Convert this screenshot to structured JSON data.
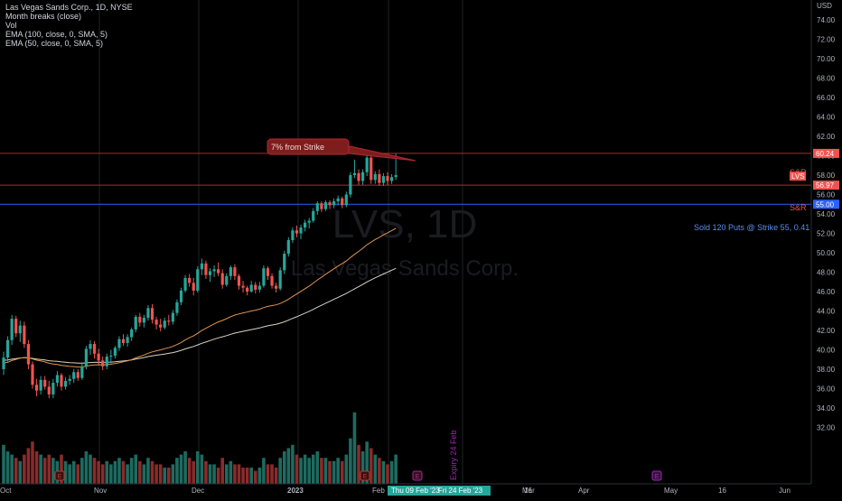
{
  "legend": {
    "symbol": "Las Vegas Sands Corp., 1D, NYSE",
    "study1": "Month breaks (close)",
    "study2": "Vol",
    "study3": "EMA (100, close, 0, SMA, 5)",
    "study4": "EMA (50, close, 0, SMA, 5)"
  },
  "watermark": {
    "ticker": "LVS, 1D",
    "name": "Las Vegas Sands Corp."
  },
  "colors": {
    "background": "#000000",
    "up": "#26a69a",
    "down": "#ef5350",
    "sr_line": "#b22833",
    "blue_line": "#2962ff",
    "ema100": "#d9d3c7",
    "ema50": "#e0954f",
    "grid": "#1f2229",
    "text": "#b2b5be",
    "vol_up": "#1d6b60",
    "vol_down": "#8a2b2b",
    "expiry": "#9c27b0"
  },
  "chart_data": {
    "type": "candlestick",
    "y_axis": {
      "unit": "USD",
      "range": [
        31.0,
        75.0
      ],
      "ticks": [
        "74.00",
        "72.00",
        "70.00",
        "68.00",
        "66.00",
        "64.00",
        "62.00",
        "60.00",
        "58.00",
        "56.00",
        "54.00",
        "52.00",
        "50.00",
        "48.00",
        "46.00",
        "44.00",
        "42.00",
        "40.00",
        "38.00",
        "36.00",
        "34.00",
        "32.00"
      ]
    },
    "x_axis": {
      "labels": [
        "Oct",
        "Nov",
        "Dec",
        "2023",
        "Feb",
        "F",
        "Mar",
        "16",
        "Apr",
        "May",
        "16",
        "Jun"
      ]
    },
    "price_labels": {
      "sr_upper": "60.24",
      "last": "LVS",
      "sr_lower": "56.97",
      "strike": "55.00"
    },
    "date_range_label": "Thu 09 Feb '23",
    "date_range_label2": "Fri 24 Feb '23",
    "horizontal_lines": [
      {
        "name": "S&R",
        "price": 60.24
      },
      {
        "name": "S&R",
        "price": 56.97
      },
      {
        "name": "Sold 120 Puts @ Strike 55, 0.41",
        "price": 55.0
      }
    ],
    "annotations": {
      "callout": "7% from Strike",
      "sr_upper_text": "S&R",
      "sr_lower_text": "S&R",
      "strike_text": "Sold 120 Puts @ Strike 55, 0.41",
      "expiry_text": "Expiry 24 Feb"
    },
    "events": [
      "E",
      "E",
      "E",
      "E"
    ],
    "candles": [
      [
        38.0,
        39.8,
        37.4,
        39.2,
        12
      ],
      [
        39.2,
        41.4,
        38.8,
        41.0,
        10
      ],
      [
        41.0,
        43.6,
        40.5,
        43.2,
        9
      ],
      [
        43.2,
        43.5,
        41.3,
        41.7,
        8
      ],
      [
        41.7,
        43.0,
        40.8,
        42.5,
        7
      ],
      [
        42.5,
        42.9,
        40.2,
        40.6,
        9
      ],
      [
        40.6,
        41.0,
        38.0,
        38.5,
        11
      ],
      [
        38.5,
        38.8,
        36.0,
        36.4,
        13
      ],
      [
        36.4,
        37.0,
        35.2,
        35.8,
        10
      ],
      [
        35.8,
        37.3,
        35.4,
        36.9,
        9
      ],
      [
        36.9,
        37.3,
        35.9,
        36.2,
        8
      ],
      [
        36.2,
        36.8,
        35.0,
        35.4,
        9
      ],
      [
        35.4,
        37.0,
        35.0,
        36.6,
        8
      ],
      [
        36.6,
        37.8,
        36.2,
        37.4,
        7
      ],
      [
        37.4,
        37.6,
        35.8,
        36.2,
        9
      ],
      [
        36.2,
        37.2,
        35.9,
        36.8,
        7
      ],
      [
        36.8,
        37.4,
        36.4,
        37.0,
        6
      ],
      [
        37.0,
        38.0,
        36.6,
        37.7,
        7
      ],
      [
        37.7,
        38.0,
        36.8,
        37.1,
        6
      ],
      [
        37.1,
        38.6,
        36.9,
        38.3,
        8
      ],
      [
        38.3,
        40.4,
        38.0,
        40.1,
        10
      ],
      [
        40.1,
        41.0,
        39.5,
        40.6,
        9
      ],
      [
        40.6,
        40.9,
        39.1,
        39.6,
        8
      ],
      [
        39.6,
        40.1,
        38.5,
        38.9,
        7
      ],
      [
        38.9,
        39.3,
        37.9,
        38.3,
        6
      ],
      [
        38.3,
        39.6,
        38.0,
        39.3,
        7
      ],
      [
        39.3,
        40.0,
        38.6,
        39.4,
        6
      ],
      [
        39.4,
        40.4,
        39.1,
        40.2,
        7
      ],
      [
        40.2,
        41.4,
        39.9,
        41.1,
        8
      ],
      [
        41.1,
        41.6,
        40.4,
        40.7,
        7
      ],
      [
        40.7,
        41.6,
        40.3,
        41.3,
        6
      ],
      [
        41.3,
        42.3,
        40.9,
        42.1,
        8
      ],
      [
        42.1,
        43.6,
        41.8,
        43.4,
        9
      ],
      [
        43.4,
        43.8,
        42.4,
        42.8,
        7
      ],
      [
        42.8,
        43.6,
        42.3,
        43.3,
        6
      ],
      [
        43.3,
        44.6,
        43.0,
        44.3,
        8
      ],
      [
        44.3,
        44.7,
        42.7,
        43.1,
        7
      ],
      [
        43.1,
        43.4,
        42.1,
        42.6,
        6
      ],
      [
        42.6,
        43.2,
        41.9,
        42.3,
        6
      ],
      [
        42.3,
        43.3,
        42.1,
        43.0,
        5
      ],
      [
        43.0,
        43.6,
        42.5,
        42.9,
        5
      ],
      [
        42.9,
        44.1,
        42.6,
        43.8,
        6
      ],
      [
        43.8,
        45.2,
        43.5,
        44.9,
        8
      ],
      [
        44.9,
        46.4,
        44.6,
        46.1,
        9
      ],
      [
        46.1,
        47.7,
        45.9,
        47.4,
        10
      ],
      [
        47.4,
        47.8,
        46.5,
        46.9,
        8
      ],
      [
        46.9,
        47.4,
        45.6,
        46.1,
        7
      ],
      [
        46.1,
        48.6,
        45.9,
        48.3,
        10
      ],
      [
        48.3,
        49.4,
        47.7,
        48.9,
        9
      ],
      [
        48.9,
        49.2,
        47.3,
        47.7,
        7
      ],
      [
        47.7,
        48.4,
        47.0,
        48.1,
        6
      ],
      [
        48.1,
        48.7,
        47.5,
        48.3,
        6
      ],
      [
        48.3,
        49.0,
        47.6,
        47.9,
        5
      ],
      [
        47.9,
        48.3,
        46.3,
        46.7,
        8
      ],
      [
        46.7,
        47.9,
        46.5,
        47.6,
        6
      ],
      [
        47.6,
        48.7,
        47.2,
        48.5,
        7
      ],
      [
        48.5,
        48.8,
        47.2,
        47.6,
        6
      ],
      [
        47.6,
        47.8,
        46.2,
        46.6,
        6
      ],
      [
        46.6,
        47.1,
        45.9,
        46.4,
        5
      ],
      [
        46.4,
        46.6,
        45.6,
        46.0,
        5
      ],
      [
        46.0,
        47.1,
        45.9,
        46.7,
        5
      ],
      [
        46.7,
        47.0,
        45.8,
        46.2,
        4
      ],
      [
        46.2,
        47.0,
        45.9,
        46.6,
        5
      ],
      [
        46.6,
        48.7,
        46.4,
        48.4,
        8
      ],
      [
        48.4,
        48.6,
        47.2,
        47.6,
        6
      ],
      [
        47.6,
        47.9,
        46.3,
        46.6,
        6
      ],
      [
        46.6,
        46.9,
        45.9,
        46.3,
        5
      ],
      [
        46.3,
        48.5,
        46.1,
        48.2,
        8
      ],
      [
        48.2,
        50.2,
        47.8,
        49.9,
        10
      ],
      [
        49.9,
        51.6,
        49.6,
        51.3,
        11
      ],
      [
        51.3,
        52.6,
        51.0,
        52.3,
        12
      ],
      [
        52.3,
        52.8,
        51.6,
        52.0,
        9
      ],
      [
        52.0,
        52.9,
        51.4,
        52.6,
        8
      ],
      [
        52.6,
        53.4,
        52.2,
        53.1,
        9
      ],
      [
        53.1,
        53.6,
        52.5,
        53.3,
        8
      ],
      [
        53.3,
        54.6,
        53.1,
        54.3,
        9
      ],
      [
        54.3,
        55.3,
        53.9,
        55.1,
        10
      ],
      [
        55.1,
        55.3,
        54.2,
        54.5,
        8
      ],
      [
        54.5,
        55.4,
        54.3,
        55.2,
        8
      ],
      [
        55.2,
        55.4,
        54.5,
        54.9,
        7
      ],
      [
        54.9,
        55.6,
        54.6,
        55.3,
        7
      ],
      [
        55.3,
        55.9,
        54.9,
        55.6,
        8
      ],
      [
        55.6,
        55.8,
        54.6,
        54.9,
        7
      ],
      [
        54.9,
        56.3,
        54.7,
        56.0,
        9
      ],
      [
        56.0,
        58.3,
        55.7,
        58.0,
        14
      ],
      [
        58.0,
        59.6,
        57.7,
        58.2,
        22
      ],
      [
        58.2,
        58.6,
        57.0,
        57.4,
        12
      ],
      [
        57.4,
        58.6,
        57.0,
        58.3,
        10
      ],
      [
        58.3,
        60.6,
        57.9,
        59.8,
        13
      ],
      [
        59.8,
        60.1,
        57.1,
        57.5,
        11
      ],
      [
        57.5,
        58.4,
        57.1,
        58.1,
        9
      ],
      [
        58.1,
        58.6,
        56.9,
        57.2,
        8
      ],
      [
        57.2,
        58.2,
        56.9,
        57.9,
        7
      ],
      [
        57.9,
        58.3,
        57.0,
        57.4,
        6
      ],
      [
        57.4,
        58.1,
        57.1,
        57.8,
        7
      ],
      [
        57.8,
        60.2,
        57.5,
        58.0,
        9
      ]
    ]
  }
}
